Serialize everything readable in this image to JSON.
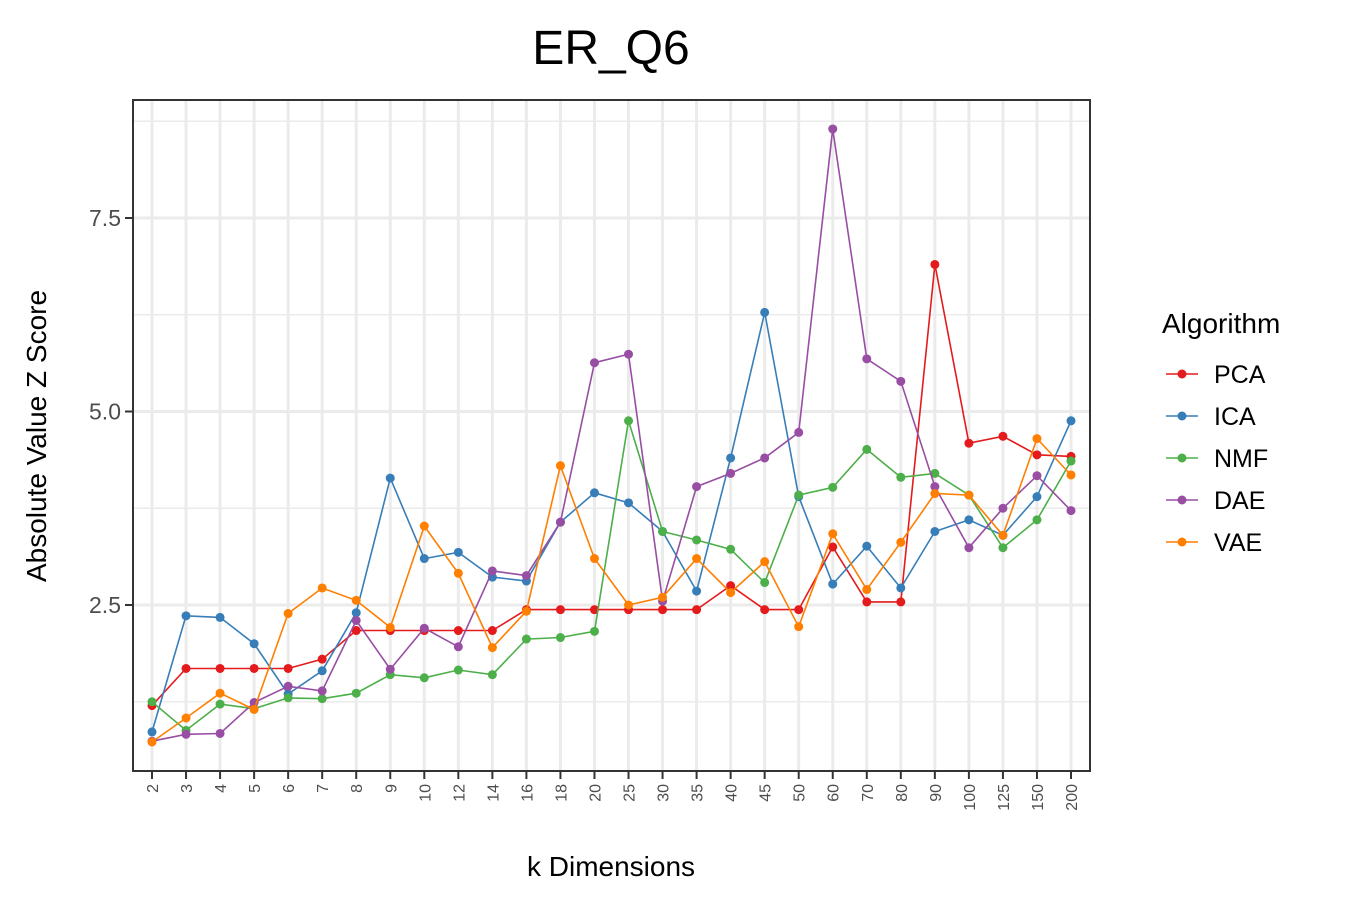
{
  "chart_data": {
    "type": "line",
    "title": "ER_Q6",
    "xlabel": "k Dimensions",
    "ylabel": "Absolute Value Z Score",
    "x": [
      "2",
      "3",
      "4",
      "5",
      "6",
      "7",
      "8",
      "9",
      "10",
      "12",
      "14",
      "16",
      "18",
      "20",
      "25",
      "30",
      "35",
      "40",
      "45",
      "50",
      "60",
      "70",
      "80",
      "90",
      "100",
      "125",
      "150",
      "200"
    ],
    "y_ticks": [
      "2.5",
      "5.0",
      "7.5"
    ],
    "ylim": [
      0.4,
      9.1
    ],
    "grid": true,
    "legend_position": "right",
    "legend_title": "Algorithm",
    "series": [
      {
        "name": "PCA",
        "color": "#e41a1c",
        "values": [
          1.2,
          1.68,
          1.68,
          1.68,
          1.68,
          1.8,
          2.17,
          2.17,
          2.17,
          2.17,
          2.17,
          2.44,
          2.44,
          2.44,
          2.44,
          2.44,
          2.44,
          2.75,
          2.44,
          2.44,
          3.25,
          2.54,
          2.54,
          6.9,
          4.59,
          4.68,
          4.44,
          4.42
        ]
      },
      {
        "name": "ICA",
        "color": "#377eb8",
        "values": [
          0.86,
          2.36,
          2.34,
          2.0,
          1.35,
          1.65,
          2.4,
          4.14,
          3.1,
          3.18,
          2.86,
          2.81,
          3.57,
          3.95,
          3.82,
          3.45,
          2.68,
          4.4,
          6.28,
          3.9,
          2.77,
          3.26,
          2.72,
          3.45,
          3.6,
          3.4,
          3.9,
          4.88
        ]
      },
      {
        "name": "NMF",
        "color": "#4daf4a",
        "values": [
          1.25,
          0.88,
          1.22,
          1.16,
          1.3,
          1.29,
          1.36,
          1.6,
          1.56,
          1.66,
          1.6,
          2.06,
          2.08,
          2.16,
          4.88,
          3.45,
          3.34,
          3.22,
          2.79,
          3.92,
          4.02,
          4.51,
          4.15,
          4.2,
          3.92,
          3.24,
          3.6,
          4.36
        ]
      },
      {
        "name": "DAE",
        "color": "#984ea3",
        "values": [
          0.74,
          0.83,
          0.84,
          1.24,
          1.45,
          1.39,
          2.3,
          1.67,
          2.2,
          1.96,
          2.94,
          2.88,
          3.57,
          5.63,
          5.74,
          2.55,
          4.03,
          4.2,
          4.4,
          4.73,
          8.65,
          5.68,
          5.39,
          4.03,
          3.24,
          3.75,
          4.17,
          3.72
        ]
      },
      {
        "name": "VAE",
        "color": "#ff7f00",
        "values": [
          0.73,
          1.04,
          1.36,
          1.15,
          2.39,
          2.72,
          2.56,
          2.21,
          3.52,
          2.91,
          1.95,
          2.42,
          4.3,
          3.1,
          2.5,
          2.6,
          3.1,
          2.66,
          3.06,
          2.22,
          3.42,
          2.7,
          3.31,
          3.94,
          3.92,
          3.4,
          4.65,
          4.18
        ]
      }
    ]
  }
}
